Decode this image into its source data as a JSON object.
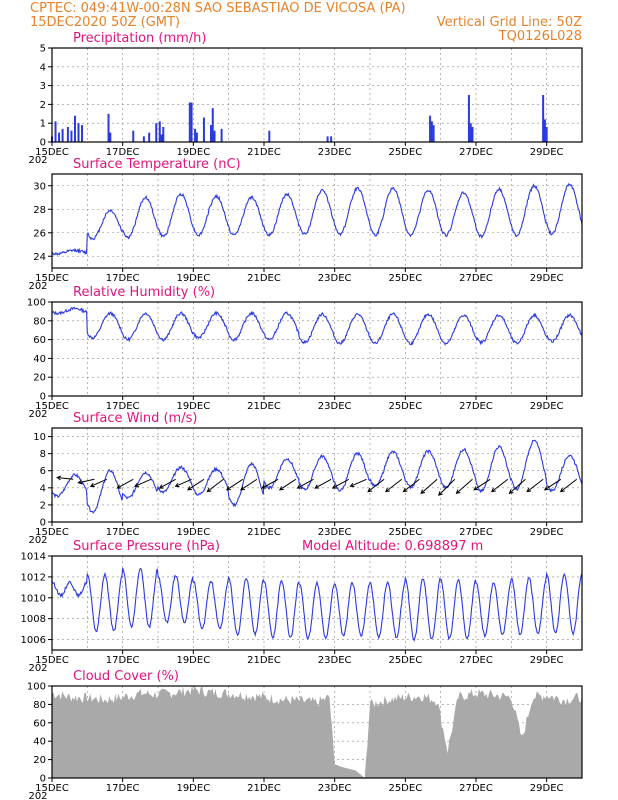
{
  "header": {
    "line1_left": "CPTEC:   049:41W-00:28N  SAO SEBASTIAO DE VICOSA (PA)",
    "line2_left": "15DEC2020 50Z (GMT)",
    "line2_right": "Vertical Grid Line: 50Z",
    "line3_right": "TQ0126L028"
  },
  "x_axis": {
    "start_day": 15,
    "end_day": 30,
    "labels": [
      "15DEC",
      "17DEC",
      "19DEC",
      "21DEC",
      "23DEC",
      "25DEC",
      "27DEC",
      "29DEC"
    ],
    "label_days": [
      15,
      17,
      19,
      21,
      23,
      25,
      27,
      29
    ],
    "year_stub": "202"
  },
  "colors": {
    "series": "#2b3ae0",
    "title": "#e0147a",
    "header": "#e8822a",
    "grid": "#888888",
    "cloud": "#a9a9a9"
  },
  "chart_data": [
    {
      "type": "bar",
      "title": "Precipitation (mm/h)",
      "ylim": [
        0,
        5
      ],
      "yticks": [
        0,
        1,
        2,
        3,
        4,
        5
      ],
      "x_days": [
        15.0,
        15.1,
        15.2,
        15.3,
        15.45,
        15.55,
        15.65,
        15.75,
        15.85,
        16.6,
        16.65,
        17.3,
        17.6,
        17.75,
        17.95,
        18.05,
        18.1,
        18.15,
        18.9,
        18.95,
        19.05,
        19.1,
        19.3,
        19.5,
        19.55,
        19.6,
        19.8,
        21.15,
        22.8,
        22.9,
        25.7,
        25.75,
        25.8,
        26.8,
        26.85,
        26.9,
        28.9,
        28.95,
        29.0
      ],
      "values": [
        0.3,
        1.1,
        0.5,
        0.7,
        0.8,
        0.6,
        1.4,
        1.0,
        0.9,
        1.5,
        0.5,
        0.6,
        0.3,
        0.5,
        1.0,
        1.1,
        0.4,
        0.8,
        2.1,
        2.1,
        0.7,
        0.5,
        1.3,
        0.9,
        1.8,
        0.6,
        0.7,
        0.6,
        0.3,
        0.3,
        1.4,
        1.1,
        0.9,
        2.5,
        1.0,
        0.8,
        2.5,
        1.2,
        0.8
      ]
    },
    {
      "type": "line",
      "title": "Surface Temperature (nC)",
      "ylim": [
        23,
        31
      ],
      "yticks": [
        24,
        26,
        28,
        30
      ],
      "series": [
        {
          "name": "",
          "period": "diurnal",
          "trough_values": [
            24.2,
            25.5,
            25.6,
            25.7,
            25.8,
            25.8,
            25.8,
            25.9,
            25.9,
            25.8,
            25.8,
            25.8,
            25.7,
            25.8,
            25.9
          ],
          "peak_values": [
            24.5,
            27.9,
            29.0,
            29.3,
            29.1,
            29.0,
            29.3,
            29.6,
            29.8,
            29.8,
            29.6,
            29.4,
            29.7,
            30.0,
            30.1
          ]
        }
      ]
    },
    {
      "type": "line",
      "title": "Relative Humidity (%)",
      "ylim": [
        0,
        100
      ],
      "yticks": [
        0,
        20,
        40,
        60,
        80,
        100
      ],
      "series": [
        {
          "name": "",
          "peak_values": [
            93,
            88,
            88,
            88,
            88,
            88,
            88,
            87,
            87,
            87,
            87,
            86,
            86,
            86,
            86
          ],
          "trough_values": [
            88,
            62,
            60,
            60,
            62,
            60,
            60,
            57,
            56,
            56,
            56,
            56,
            57,
            56,
            58
          ]
        }
      ]
    },
    {
      "type": "line",
      "title": "Surface Wind (m/s)",
      "ylim": [
        0,
        11
      ],
      "yticks": [
        0,
        2,
        4,
        6,
        8,
        10
      ],
      "series": [
        {
          "name": "",
          "peak_values": [
            5.5,
            6.0,
            5.8,
            6.4,
            6.2,
            6.8,
            7.4,
            7.7,
            8.0,
            8.2,
            8.3,
            8.5,
            8.8,
            9.5,
            7.8
          ],
          "trough_values": [
            3.0,
            1.2,
            2.8,
            3.5,
            3.2,
            2.0,
            4.0,
            3.8,
            3.7,
            4.2,
            4.1,
            4.0,
            3.6,
            3.8,
            3.7
          ]
        }
      ],
      "vector_level": 5.0,
      "vectors": [
        {
          "day": 15.6,
          "u": -1,
          "v": 0.05
        },
        {
          "day": 16.2,
          "u": -1,
          "v": -0.1
        },
        {
          "day": 16.55,
          "u": -1,
          "v": -0.2
        },
        {
          "day": 17.3,
          "u": -1,
          "v": -0.25
        },
        {
          "day": 17.8,
          "u": -1,
          "v": -0.2
        },
        {
          "day": 18.5,
          "u": -1,
          "v": -0.25
        },
        {
          "day": 18.95,
          "u": -1,
          "v": -0.2
        },
        {
          "day": 19.3,
          "u": -1,
          "v": -0.3
        },
        {
          "day": 19.85,
          "u": -1,
          "v": -0.35
        },
        {
          "day": 20.4,
          "u": -1,
          "v": -0.3
        },
        {
          "day": 20.8,
          "u": -1,
          "v": -0.3
        },
        {
          "day": 21.4,
          "u": -1,
          "v": -0.25
        },
        {
          "day": 21.9,
          "u": -1,
          "v": -0.3
        },
        {
          "day": 22.4,
          "u": -1,
          "v": -0.25
        },
        {
          "day": 22.9,
          "u": -1,
          "v": -0.25
        },
        {
          "day": 23.4,
          "u": -1,
          "v": -0.25
        },
        {
          "day": 23.9,
          "u": -1,
          "v": -0.2
        },
        {
          "day": 24.4,
          "u": -1,
          "v": -0.35
        },
        {
          "day": 24.9,
          "u": -1,
          "v": -0.35
        },
        {
          "day": 25.4,
          "u": -1,
          "v": -0.35
        },
        {
          "day": 25.9,
          "u": -1,
          "v": -0.4
        },
        {
          "day": 26.4,
          "u": -1,
          "v": -0.45
        },
        {
          "day": 26.9,
          "u": -1,
          "v": -0.4
        },
        {
          "day": 27.4,
          "u": -1,
          "v": -0.3
        },
        {
          "day": 27.9,
          "u": -1,
          "v": -0.35
        },
        {
          "day": 28.4,
          "u": -1,
          "v": -0.4
        },
        {
          "day": 28.9,
          "u": -1,
          "v": -0.35
        },
        {
          "day": 29.4,
          "u": -1,
          "v": -0.3
        },
        {
          "day": 29.85,
          "u": -1,
          "v": -0.35
        }
      ]
    },
    {
      "type": "line",
      "title": "Surface Pressure (hPa)",
      "annotation": "Model Altitude: 0.698897 m",
      "ylim": [
        1005,
        1014
      ],
      "yticks": [
        1006,
        1008,
        1010,
        1012,
        1014
      ],
      "series": [
        {
          "name": "",
          "max_values": [
            1011.5,
            1012.2,
            1012.8,
            1012.1,
            1011.6,
            1011.9,
            1011.6,
            1011.4,
            1011.4,
            1011.5,
            1011.8,
            1011.7,
            1011.5,
            1011.9,
            1012.3
          ],
          "min_values": [
            1010.2,
            1006.8,
            1007.2,
            1007.6,
            1007.0,
            1006.5,
            1006.2,
            1006.1,
            1006.3,
            1006.2,
            1006.0,
            1006.1,
            1006.4,
            1006.5,
            1006.6
          ]
        }
      ]
    },
    {
      "type": "area",
      "title": "Cloud Cover (%)",
      "ylim": [
        0,
        100
      ],
      "yticks": [
        0,
        20,
        40,
        60,
        80,
        100
      ],
      "x_days": [
        15.0,
        15.5,
        16.0,
        16.5,
        17.0,
        17.5,
        18.0,
        18.5,
        19.0,
        19.5,
        20.0,
        20.5,
        21.0,
        21.5,
        22.0,
        22.5,
        22.85,
        23.0,
        23.2,
        23.4,
        23.6,
        23.85,
        24.0,
        24.5,
        25.0,
        25.5,
        25.9,
        26.2,
        26.5,
        27.0,
        27.5,
        28.0,
        28.3,
        28.6,
        29.0,
        29.5,
        30.0
      ],
      "values": [
        92,
        88,
        87,
        85,
        88,
        92,
        91,
        93,
        96,
        93,
        92,
        90,
        88,
        85,
        84,
        82,
        88,
        15,
        12,
        10,
        8,
        0,
        80,
        85,
        88,
        89,
        84,
        30,
        88,
        92,
        90,
        88,
        42,
        88,
        90,
        85,
        88
      ]
    }
  ]
}
